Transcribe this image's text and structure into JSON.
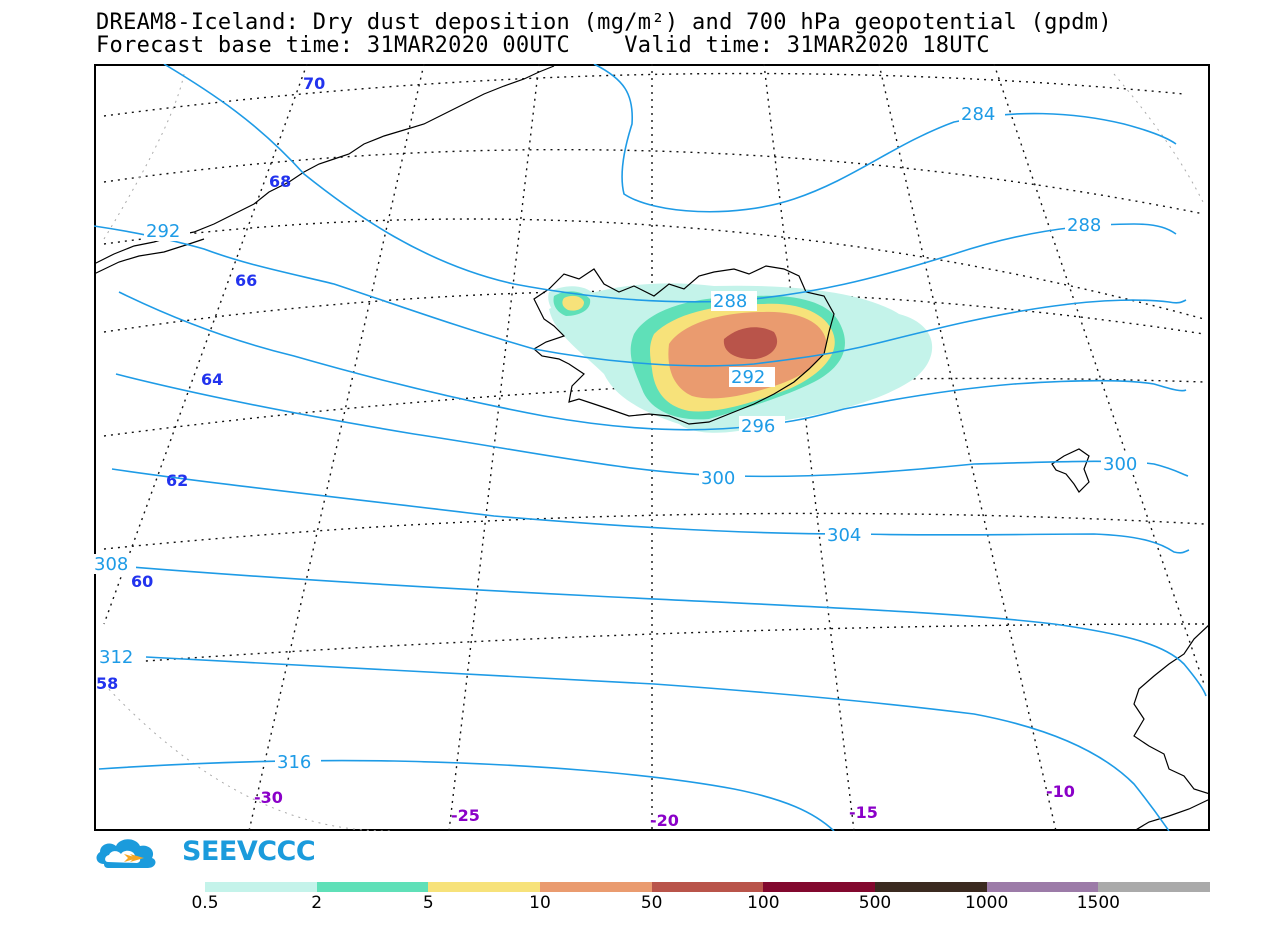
{
  "title": {
    "line1": "DREAM8-Iceland: Dry dust deposition (mg/m²) and 700 hPa geopotential (gpdm)",
    "line2": "Forecast base time: 31MAR2020 00UTC    Valid time: 31MAR2020 18UTC"
  },
  "brand": "SEEVCCC",
  "colors": {
    "contour": "#1e9be6",
    "lat_label": "#2233ee",
    "lon_label": "#8a00c8",
    "coast": "#000000"
  },
  "colorbar": {
    "ticks": [
      "0.5",
      "2",
      "5",
      "10",
      "50",
      "100",
      "500",
      "1000",
      "1500"
    ],
    "colors": [
      "#c4f3ea",
      "#5fe0b8",
      "#f7e27a",
      "#ea9b6f",
      "#b9544a",
      "#82082e",
      "#3b2a20",
      "#9c7ba8",
      "#aaaaaa"
    ]
  },
  "map": {
    "lat_labels": [
      "70",
      "68",
      "66",
      "64",
      "62",
      "60",
      "58"
    ],
    "lon_labels": [
      "-30",
      "-25",
      "-20",
      "-15",
      "-10"
    ],
    "contour_labels": [
      "284",
      "288",
      "292",
      "288",
      "292",
      "296",
      "300",
      "300",
      "304",
      "308",
      "312",
      "316"
    ]
  }
}
